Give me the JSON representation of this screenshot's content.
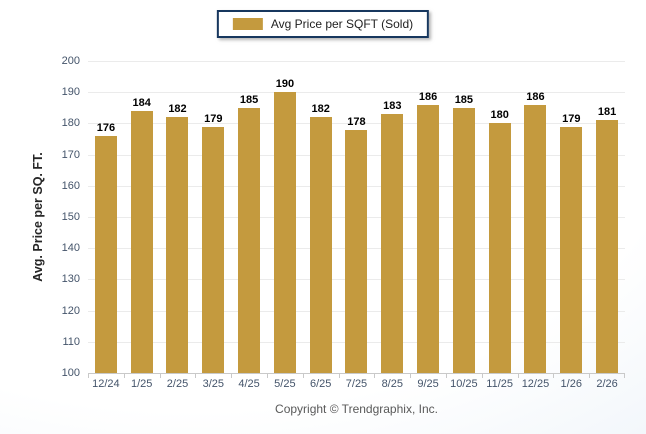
{
  "legend": {
    "label": "Avg Price per SQFT (Sold)",
    "swatch_color": "#C49A3E",
    "border_color": "#17375E"
  },
  "y_axis": {
    "title": "Avg. Price per SQ. FT.",
    "ticks": [
      200,
      190,
      180,
      170,
      160,
      150,
      140,
      130,
      120,
      110,
      100
    ]
  },
  "footer": {
    "copyright": "Copyright © Trendgraphix, Inc."
  },
  "colors": {
    "bar": "#C49A3E",
    "gridline": "#ebebeb",
    "axis_line": "#c9c9c9",
    "tick_label": "#44546A",
    "value_label": "#000000",
    "copyright_text": "#595959"
  },
  "chart_data": {
    "type": "bar",
    "title": "",
    "categories": [
      "12/24",
      "1/25",
      "2/25",
      "3/25",
      "4/25",
      "5/25",
      "6/25",
      "7/25",
      "8/25",
      "9/25",
      "10/25",
      "11/25",
      "12/25",
      "1/26",
      "2/26"
    ],
    "values": [
      176,
      184,
      182,
      179,
      185,
      190,
      182,
      178,
      183,
      186,
      185,
      180,
      186,
      179,
      181
    ],
    "series": [
      {
        "name": "Avg Price per SQFT (Sold)",
        "values": [
          176,
          184,
          182,
          179,
          185,
          190,
          182,
          178,
          183,
          186,
          185,
          180,
          186,
          179,
          181
        ]
      }
    ],
    "xlabel": "",
    "ylabel": "Avg. Price per SQ. FT.",
    "ylim": [
      100,
      200
    ],
    "ytick_step": 10,
    "grid": true,
    "data_labels": true,
    "legend_position": "top-center"
  }
}
